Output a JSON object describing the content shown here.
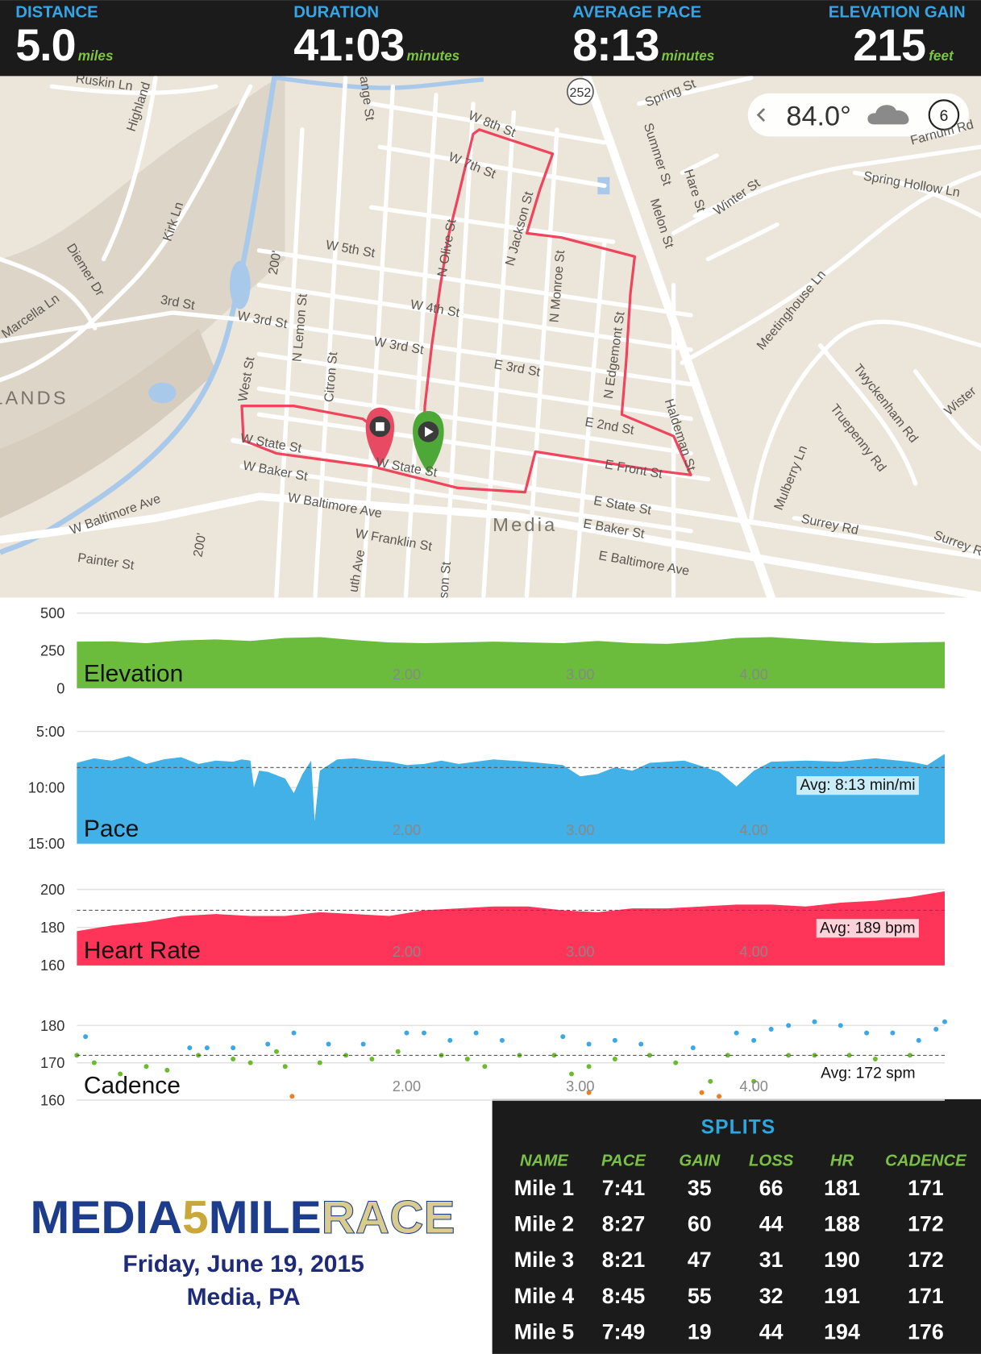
{
  "header": {
    "stats": [
      {
        "label": "DISTANCE",
        "value": "5.0",
        "unit": "miles"
      },
      {
        "label": "DURATION",
        "value": "41:03",
        "unit": "minutes"
      },
      {
        "label": "AVERAGE PACE",
        "value": "8:13",
        "unit": "minutes"
      },
      {
        "label": "ELEVATION GAIN",
        "value": "215",
        "unit": "feet"
      }
    ]
  },
  "map": {
    "labels": [
      "Ruskin Ln",
      "Highland",
      "range St",
      "W 8th St",
      "W 7th St",
      "Spring St",
      "Summer St",
      "Hare St",
      "Winter St",
      "Farnum Rd",
      "Spring Hollow Ln",
      "Kirk Ln",
      "Diemer Dr",
      "Marcella Ln",
      "3rd St",
      "W 3rd St",
      "W 5th St",
      "N Olive St",
      "N Jackson St",
      "N Monroe St",
      "Melon St",
      "Meetinghouse Ln",
      "N Lemon St",
      "Citron St",
      "W 4th St",
      "W 3rd St",
      "E 3rd St",
      "N Edgemont St",
      "Haldeman St",
      "West St",
      "LANDS",
      "Twyckenham Rd",
      "Truepenny Rd",
      "Wister",
      "E 2nd St",
      "W State St",
      "W Baker St",
      "W State St",
      "Mulberry Ln",
      "E Front St",
      "W Baltimore Ave",
      "W Baltimore Ave",
      "E State St",
      "E Baker St",
      "Media",
      "Surrey Rd",
      "Surrey Rd",
      "W Franklin St",
      "E Baltimore Ave",
      "Painter St",
      "200'",
      "200'",
      "uth Ave",
      "son St"
    ],
    "route_shield": "252",
    "weather": {
      "temperature": "84.0°",
      "badge": "6"
    }
  },
  "chart_data": [
    {
      "type": "area",
      "title": "Elevation",
      "color": "#6bbb3d",
      "xlim": [
        0.1,
        5.1
      ],
      "ylim": [
        0,
        500
      ],
      "yticks": [
        0,
        250,
        500
      ],
      "xticks": [
        {
          "value": 2,
          "label": "2.00"
        },
        {
          "value": 3,
          "label": "3.00"
        },
        {
          "value": 4,
          "label": "4.00"
        }
      ],
      "x": [
        0.1,
        0.3,
        0.5,
        0.7,
        0.9,
        1.1,
        1.3,
        1.5,
        1.7,
        1.9,
        2.1,
        2.3,
        2.5,
        2.7,
        2.9,
        3.1,
        3.3,
        3.5,
        3.7,
        3.9,
        4.1,
        4.3,
        4.5,
        4.7,
        4.9,
        5.1
      ],
      "values": [
        310,
        312,
        300,
        318,
        325,
        315,
        335,
        340,
        320,
        305,
        300,
        305,
        310,
        305,
        300,
        315,
        300,
        295,
        310,
        335,
        340,
        325,
        310,
        300,
        305,
        308
      ]
    },
    {
      "type": "area",
      "title": "Pace",
      "color": "#41b1e8",
      "xlim": [
        0.1,
        5.1
      ],
      "ylim": [
        15,
        5
      ],
      "yticks": [
        {
          "value": 5,
          "label": "5:00"
        },
        {
          "value": 10,
          "label": "10:00"
        },
        {
          "value": 15,
          "label": "15:00"
        }
      ],
      "xticks": [
        {
          "value": 2,
          "label": "2.00"
        },
        {
          "value": 3,
          "label": "3.00"
        },
        {
          "value": 4,
          "label": "4.00"
        }
      ],
      "x": [
        0.1,
        0.2,
        0.3,
        0.4,
        0.5,
        0.6,
        0.7,
        0.8,
        0.9,
        1.0,
        1.05,
        1.1,
        1.12,
        1.15,
        1.2,
        1.3,
        1.35,
        1.4,
        1.45,
        1.47,
        1.5,
        1.6,
        1.7,
        1.8,
        1.9,
        2.0,
        2.1,
        2.2,
        2.3,
        2.5,
        2.7,
        2.9,
        3.0,
        3.1,
        3.2,
        3.3,
        3.4,
        3.6,
        3.8,
        3.9,
        4.0,
        4.1,
        4.3,
        4.5,
        4.7,
        4.9,
        5.0,
        5.1
      ],
      "values": [
        7.8,
        7.4,
        7.6,
        7.2,
        7.9,
        7.5,
        7.3,
        7.9,
        7.6,
        7.7,
        7.5,
        7.6,
        10.0,
        8.5,
        8.6,
        9.2,
        10.5,
        8.8,
        7.6,
        13.0,
        8.5,
        7.5,
        7.4,
        7.6,
        7.7,
        8.0,
        7.9,
        7.6,
        7.9,
        7.5,
        7.7,
        8.0,
        9.0,
        8.8,
        8.2,
        8.5,
        7.8,
        7.6,
        8.6,
        9.9,
        8.5,
        7.7,
        7.6,
        7.7,
        7.4,
        7.7,
        8.0,
        7.0
      ],
      "avg": 8.2167,
      "avg_label": "Avg: 8:13 min/mi"
    },
    {
      "type": "area",
      "title": "Heart Rate",
      "color": "#ff3459",
      "xlim": [
        0.1,
        5.1
      ],
      "ylim": [
        160,
        200
      ],
      "yticks": [
        160,
        180,
        200
      ],
      "xticks": [
        {
          "value": 2,
          "label": "2.00"
        },
        {
          "value": 3,
          "label": "3.00"
        },
        {
          "value": 4,
          "label": "4.00"
        }
      ],
      "x": [
        0.1,
        0.3,
        0.5,
        0.7,
        0.9,
        1.1,
        1.3,
        1.5,
        1.7,
        1.9,
        2.1,
        2.3,
        2.5,
        2.7,
        2.9,
        3.1,
        3.3,
        3.5,
        3.7,
        3.9,
        4.1,
        4.3,
        4.5,
        4.7,
        4.9,
        5.1
      ],
      "values": [
        178,
        181,
        183,
        186,
        187,
        186,
        186,
        188,
        187,
        186,
        189,
        190,
        191,
        191,
        189,
        188,
        190,
        190,
        191,
        192,
        192,
        191,
        193,
        194,
        196,
        199
      ],
      "avg": 189,
      "avg_label": "Avg: 189 bpm"
    },
    {
      "type": "scatter",
      "title": "Cadence",
      "xlim": [
        0.1,
        5.1
      ],
      "ylim": [
        160,
        185
      ],
      "yticks": [
        160,
        170,
        180
      ],
      "xticks": [
        {
          "value": 2,
          "label": "2.00"
        },
        {
          "value": 3,
          "label": "3.00"
        },
        {
          "value": 4,
          "label": "4.00"
        }
      ],
      "series": [
        {
          "color": "#3aa8e6",
          "x": [
            0.15,
            0.75,
            0.85,
            1.0,
            1.2,
            1.35,
            1.55,
            1.75,
            2.0,
            2.1,
            2.25,
            2.4,
            2.55,
            2.9,
            3.05,
            3.2,
            3.35,
            3.65,
            3.9,
            4.0,
            4.1,
            4.2,
            4.35,
            4.5,
            4.65,
            4.8,
            4.95,
            5.05,
            5.1
          ],
          "values": [
            177,
            174,
            174,
            174,
            175,
            178,
            175,
            175,
            178,
            178,
            176,
            178,
            176,
            177,
            175,
            176,
            175,
            174,
            178,
            176,
            179,
            180,
            181,
            180,
            178,
            178,
            176,
            179,
            181
          ]
        },
        {
          "color": "#6cbb2e",
          "x": [
            0.1,
            0.2,
            0.35,
            0.5,
            0.62,
            0.8,
            1.0,
            1.1,
            1.25,
            1.3,
            1.5,
            1.65,
            1.8,
            1.95,
            2.2,
            2.35,
            2.45,
            2.65,
            2.85,
            2.95,
            3.05,
            3.2,
            3.4,
            3.55,
            3.75,
            3.85,
            4.0,
            4.2,
            4.35,
            4.55,
            4.7,
            4.9
          ],
          "values": [
            172,
            170,
            167,
            169,
            168,
            172,
            171,
            170,
            173,
            169,
            170,
            172,
            171,
            173,
            172,
            171,
            169,
            172,
            172,
            167,
            169,
            171,
            172,
            170,
            165,
            172,
            165,
            172,
            172,
            172,
            171,
            172
          ]
        },
        {
          "color": "#ef7d22",
          "x": [
            1.34,
            3.05,
            3.7,
            3.8
          ],
          "values": [
            161,
            162,
            162,
            161
          ]
        }
      ],
      "avg": 172,
      "avg_label": "Avg: 172 spm"
    }
  ],
  "logo": {
    "parts": [
      "MEDIA",
      "5",
      "MILE",
      "RACE"
    ],
    "date": "Friday, June 19, 2015",
    "place": "Media, PA"
  },
  "splits": {
    "title": "SPLITS",
    "columns": [
      "NAME",
      "PACE",
      "GAIN",
      "LOSS",
      "HR",
      "CADENCE"
    ],
    "rows": [
      [
        "Mile 1",
        "7:41",
        35,
        66,
        181,
        171
      ],
      [
        "Mile 2",
        "8:27",
        60,
        44,
        188,
        172
      ],
      [
        "Mile 3",
        "8:21",
        47,
        31,
        190,
        172
      ],
      [
        "Mile 4",
        "8:45",
        55,
        32,
        191,
        171
      ],
      [
        "Mile 5",
        "7:49",
        19,
        44,
        194,
        176
      ]
    ]
  }
}
